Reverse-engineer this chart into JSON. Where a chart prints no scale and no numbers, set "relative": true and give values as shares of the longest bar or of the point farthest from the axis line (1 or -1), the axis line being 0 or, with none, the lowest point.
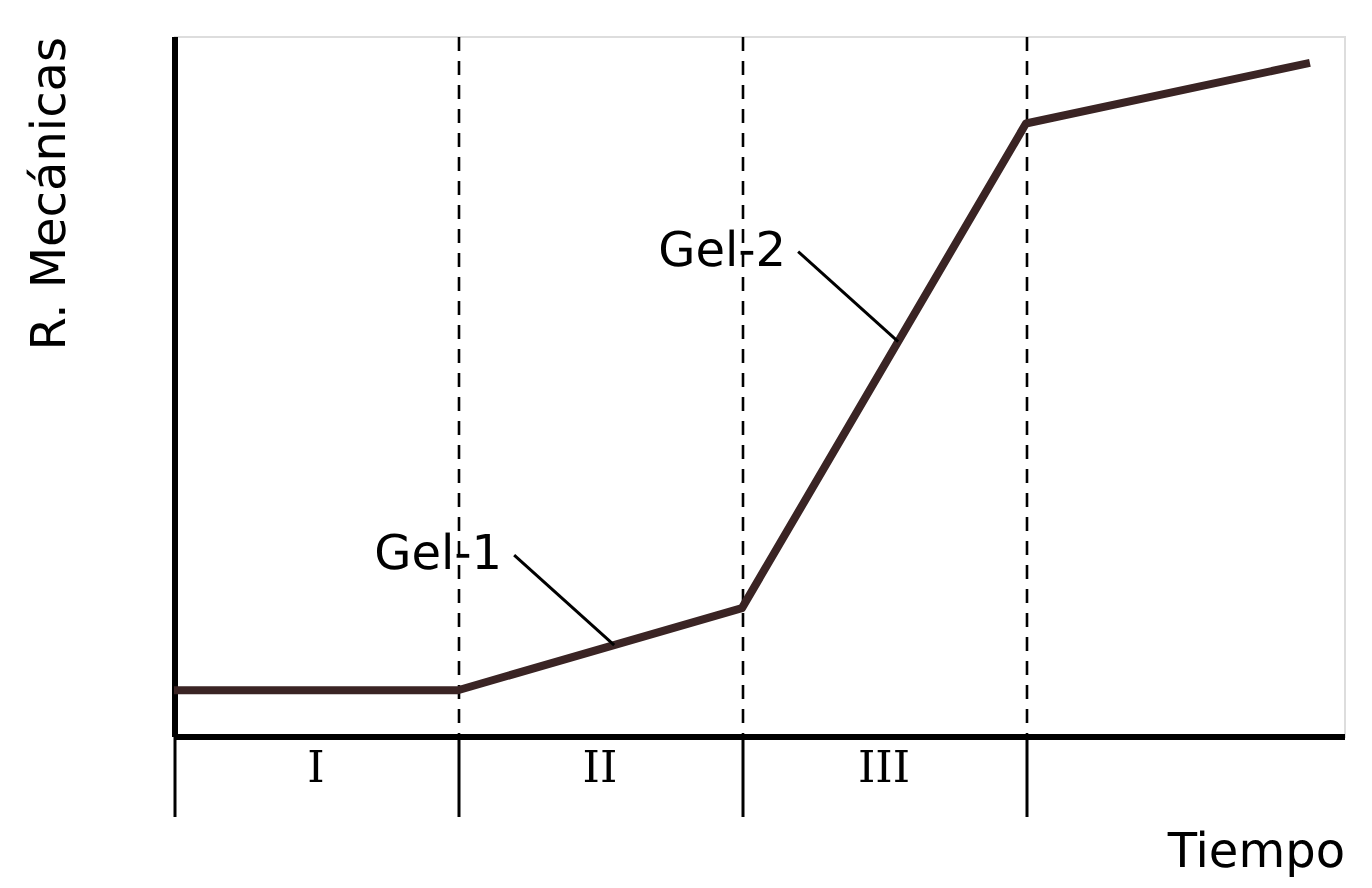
{
  "chart_data": {
    "type": "line",
    "relative": true,
    "xlabel": "Tiempo",
    "ylabel": "R. Mecánicas",
    "categories": [
      null,
      null,
      null,
      null,
      null
    ],
    "grid": "x",
    "marker": "none",
    "line_style": "solid",
    "series": [
      {
        "color": "#3a2424",
        "values": [
          0.068,
          0.068,
          0.19,
          0.91,
          1.0
        ]
      }
    ],
    "annotations": [
      "Gel-1",
      "Gel-2",
      "I",
      "II",
      "III"
    ]
  }
}
